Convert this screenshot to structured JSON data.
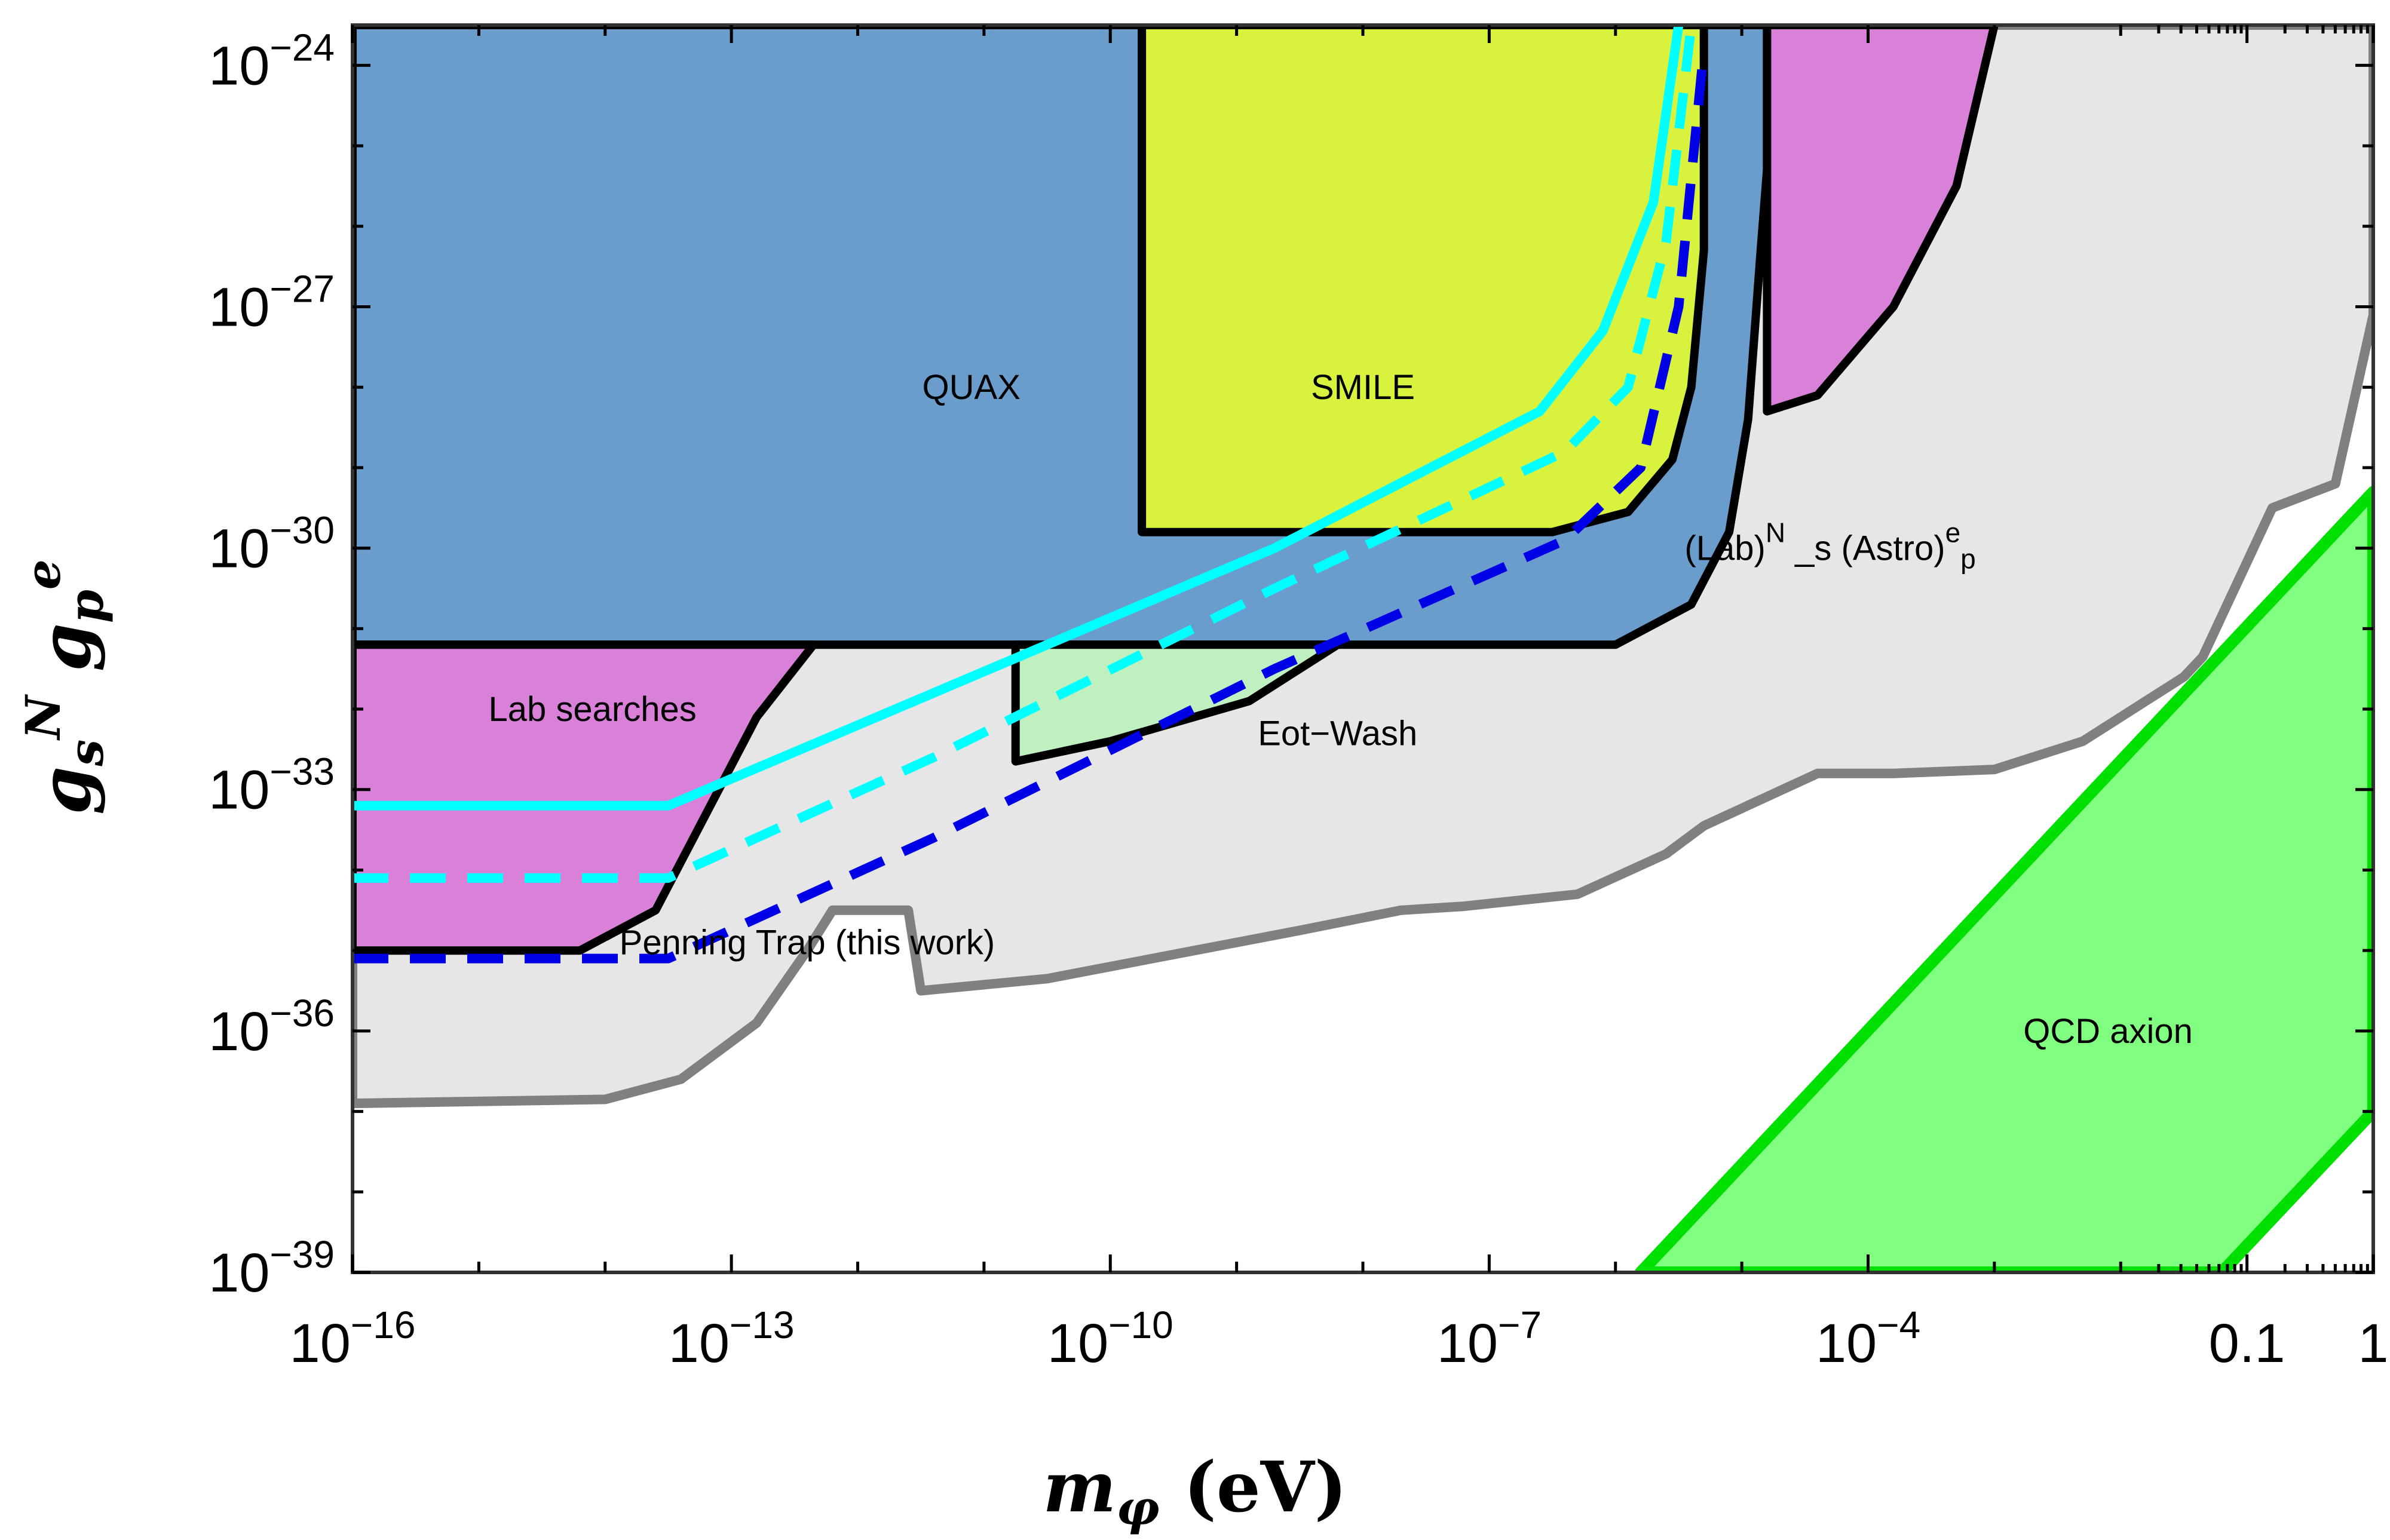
{
  "chart_data": {
    "type": "area",
    "title": "",
    "xlabel": "m_φ (eV)",
    "ylabel": "g_s^N g_p^e",
    "x_scale": "log",
    "y_scale": "log",
    "xlim_exponent": [
      -16,
      0
    ],
    "ylim_exponent": [
      -39,
      -23.5
    ],
    "grid": false,
    "legend": "none",
    "x_tick_labels": [
      {
        "exp": -16,
        "base": "10",
        "sup": "−16"
      },
      {
        "exp": -13,
        "base": "10",
        "sup": "−13"
      },
      {
        "exp": -10,
        "base": "10",
        "sup": "−10"
      },
      {
        "exp": -7,
        "base": "10",
        "sup": "−7"
      },
      {
        "exp": -4,
        "base": "10",
        "sup": "−4"
      },
      {
        "exp": -1,
        "text": "0.1"
      },
      {
        "exp": 0,
        "text": "1"
      }
    ],
    "y_tick_labels": [
      {
        "exp": -24,
        "base": "10",
        "sup": "−24"
      },
      {
        "exp": -27,
        "base": "10",
        "sup": "−27"
      },
      {
        "exp": -30,
        "base": "10",
        "sup": "−30"
      },
      {
        "exp": -33,
        "base": "10",
        "sup": "−33"
      },
      {
        "exp": -36,
        "base": "10",
        "sup": "−36"
      },
      {
        "exp": -39,
        "base": "10",
        "sup": "−39"
      }
    ],
    "regions": [
      {
        "name": "(Lab)^N_s (Astro)^e_p",
        "label": "(Lab)N_s (Astro)ep",
        "label_base": "(Lab)",
        "label_sup1": "N",
        "label_mid": " _s (Astro)",
        "label_sup2": "e",
        "label_sub2": "p",
        "label_at_log": [
          -4.3,
          -30.0
        ],
        "fill": "#e6e6e6",
        "stroke": "#808080",
        "stroke_width": 16,
        "boundary_log": [
          [
            -16,
            -36.9
          ],
          [
            -14,
            -36.85
          ],
          [
            -13.4,
            -36.6
          ],
          [
            -12.8,
            -35.9
          ],
          [
            -12.4,
            -35.0
          ],
          [
            -12.2,
            -34.5
          ],
          [
            -11.6,
            -34.5
          ],
          [
            -11.5,
            -35.5
          ],
          [
            -10.5,
            -35.35
          ],
          [
            -9.5,
            -35.05
          ],
          [
            -8.5,
            -34.75
          ],
          [
            -7.7,
            -34.5
          ],
          [
            -7.2,
            -34.45
          ],
          [
            -6.3,
            -34.3
          ],
          [
            -5.6,
            -33.8
          ],
          [
            -5.3,
            -33.45
          ],
          [
            -4.4,
            -32.8
          ],
          [
            -3.8,
            -32.8
          ],
          [
            -3.0,
            -32.75
          ],
          [
            -2.3,
            -32.4
          ],
          [
            -1.5,
            -31.6
          ],
          [
            -1.35,
            -31.35
          ],
          [
            -0.8,
            -29.5
          ],
          [
            -0.3,
            -29.2
          ],
          [
            0,
            -27.1
          ],
          [
            0,
            -23.5
          ],
          [
            -2.6,
            -23.5
          ],
          [
            -2.5,
            -23.5
          ],
          [
            -16,
            -23.5
          ]
        ]
      },
      {
        "name": "QUAX",
        "label": "QUAX",
        "label_at_log": [
          -11.1,
          -28.0
        ],
        "fill": "#6a9ccc",
        "stroke": "#000000",
        "stroke_width": 14,
        "boundary_log": [
          [
            -16,
            -31.2
          ],
          [
            -6.0,
            -31.2
          ],
          [
            -5.4,
            -30.7
          ],
          [
            -5.1,
            -29.8
          ],
          [
            -4.95,
            -28.4
          ],
          [
            -4.85,
            -26.3
          ],
          [
            -4.8,
            -25.3
          ],
          [
            -4.8,
            -23.5
          ],
          [
            -16,
            -23.5
          ]
        ]
      },
      {
        "name": "SMILE",
        "label": "SMILE",
        "label_at_log": [
          -8.0,
          -28.0
        ],
        "fill": "#d9f23d",
        "stroke": "#000000",
        "stroke_width": 14,
        "boundary_log": [
          [
            -9.75,
            -29.8
          ],
          [
            -6.5,
            -29.8
          ],
          [
            -5.9,
            -29.55
          ],
          [
            -5.55,
            -28.9
          ],
          [
            -5.4,
            -28.0
          ],
          [
            -5.3,
            -26.3
          ],
          [
            -5.3,
            -24.1
          ],
          [
            -5.3,
            -23.5
          ],
          [
            -9.75,
            -23.5
          ]
        ]
      },
      {
        "name": "Lab searches",
        "label": "Lab searches",
        "label_at_log": [
          -14.1,
          -32.0
        ],
        "fill": "#d980d9",
        "stroke": "#000000",
        "stroke_width": 14,
        "boundary_log": [
          [
            -16,
            -35.0
          ],
          [
            -14.2,
            -35.0
          ],
          [
            -13.6,
            -34.5
          ],
          [
            -13.3,
            -33.6
          ],
          [
            -12.8,
            -32.1
          ],
          [
            -12.35,
            -31.2
          ],
          [
            -16,
            -31.2
          ]
        ]
      },
      {
        "name": "Eot-Wash",
        "label": "Eot−Wash",
        "label_at_log": [
          -8.2,
          -32.3
        ],
        "fill": "#c0f0c0",
        "stroke": "#000000",
        "stroke_width": 14,
        "boundary_log": [
          [
            -10.75,
            -31.2
          ],
          [
            -10.75,
            -32.65
          ],
          [
            -10.0,
            -32.4
          ],
          [
            -8.9,
            -31.9
          ],
          [
            -8.2,
            -31.2
          ]
        ]
      },
      {
        "name": "Astro upper-right",
        "label": "",
        "fill": "#d980d9",
        "stroke": "#000000",
        "stroke_width": 14,
        "boundary_log": [
          [
            -4.8,
            -28.3
          ],
          [
            -4.4,
            -28.1
          ],
          [
            -3.8,
            -27.0
          ],
          [
            -3.3,
            -25.5
          ],
          [
            -3.0,
            -23.5
          ],
          [
            -4.8,
            -23.5
          ]
        ]
      },
      {
        "name": "QCD axion",
        "label": "QCD axion",
        "label_at_log": [
          -2.1,
          -36.0
        ],
        "fill": "#80ff80",
        "stroke": "#00e000",
        "stroke_width": 20,
        "boundary_log": [
          [
            -5.8,
            -39
          ],
          [
            0,
            -29.3
          ],
          [
            0,
            -37.0
          ],
          [
            -1.2,
            -39
          ]
        ]
      }
    ],
    "series": [
      {
        "name": "Penning Trap (this work)",
        "label_at_log": [
          -12.4,
          -34.9
        ],
        "color": "#00ffff",
        "style": "solid",
        "width": 16,
        "x_log": [
          -16,
          -13.5,
          -11.4,
          -8.7,
          -6.6,
          -6.1,
          -5.7,
          -5.5
        ],
        "y_log": [
          -33.2,
          -33.2,
          -31.8,
          -30.0,
          -28.3,
          -27.3,
          -25.7,
          -23.5
        ]
      },
      {
        "name": "projection cyan dashed",
        "color": "#00ffff",
        "style": "dashed",
        "width": 16,
        "x_log": [
          -16,
          -13.5,
          -11.4,
          -8.7,
          -6.4,
          -5.9,
          -5.6,
          -5.4
        ],
        "y_log": [
          -34.1,
          -34.1,
          -32.6,
          -30.5,
          -28.8,
          -28.0,
          -26.2,
          -23.5
        ]
      },
      {
        "name": "projection blue dashed",
        "color": "#0000e6",
        "style": "dashed",
        "width": 16,
        "x_log": [
          -16,
          -13.5,
          -11.4,
          -8.7,
          -6.4,
          -5.8,
          -5.5,
          -5.3
        ],
        "y_log": [
          -35.1,
          -35.1,
          -33.6,
          -31.5,
          -29.9,
          -29.0,
          -27.0,
          -23.8
        ]
      }
    ]
  }
}
